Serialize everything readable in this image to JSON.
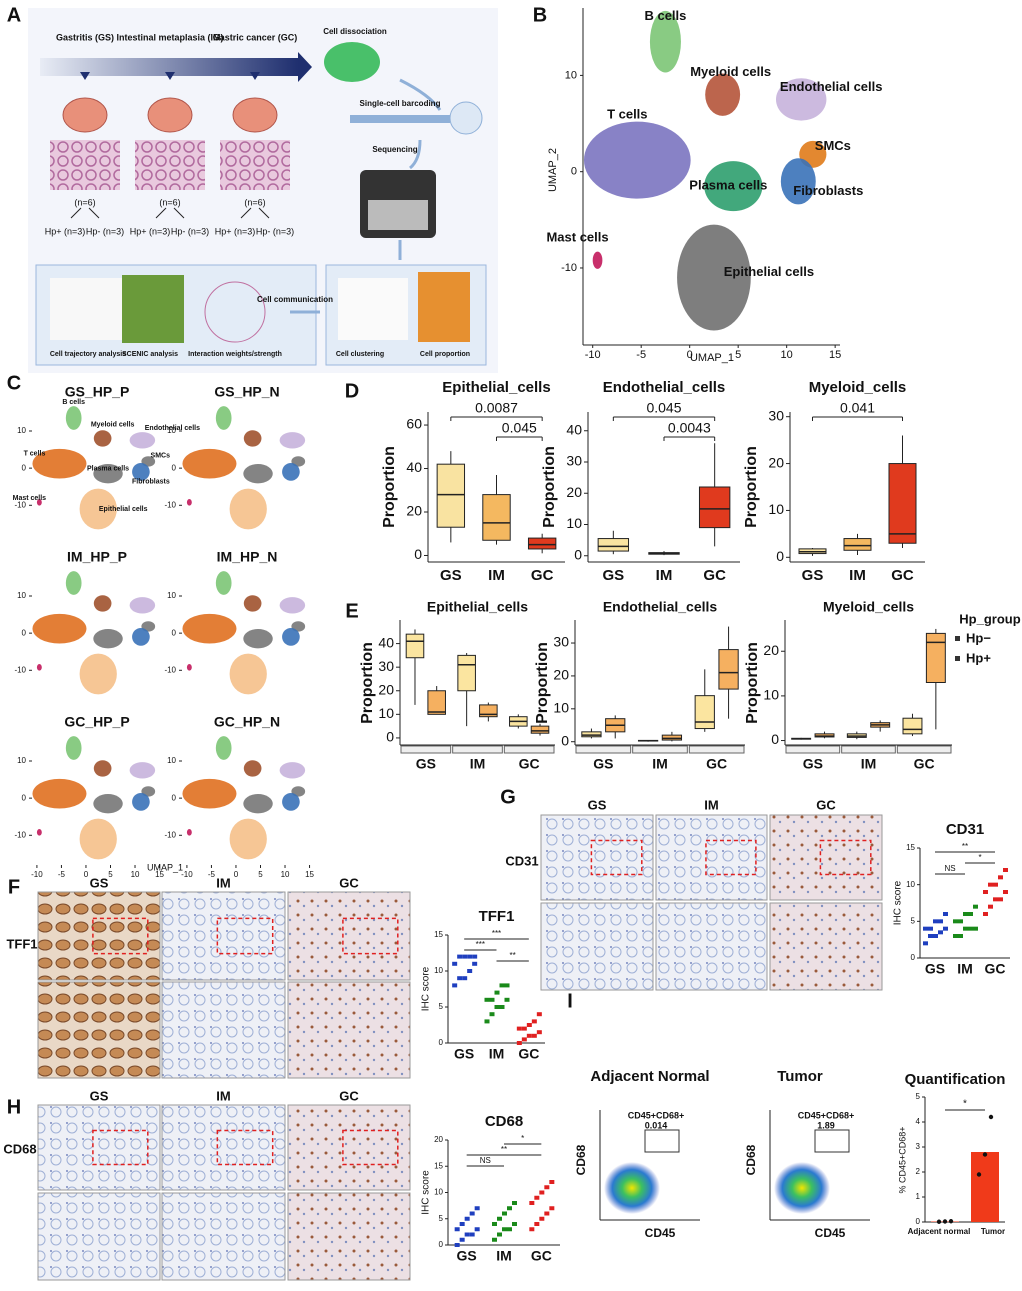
{
  "letters": [
    "A",
    "B",
    "C",
    "D",
    "E",
    "F",
    "G",
    "H",
    "I"
  ],
  "A": {
    "stages": [
      {
        "name": "Gastritis (GS)",
        "n": "(n=6)",
        "pos": "Hp+ (n=3)",
        "neg": "Hp- (n=3)"
      },
      {
        "name": "Intestinal metaplasia (IM)",
        "n": "(n=6)",
        "pos": "Hp+ (n=3)",
        "neg": "Hp- (n=3)"
      },
      {
        "name": "Gastric cancer (GC)",
        "n": "(n=6)",
        "pos": "Hp+ (n=3)",
        "neg": "Hp- (n=3)"
      }
    ],
    "steps": [
      "Cell dissociation",
      "Single-cell barcoding",
      "Sequencing",
      "Cell communication"
    ],
    "analyses": [
      "Cell trajectory analysis",
      "SCENIC analysis",
      "Interaction weights/strength",
      "Cell clustering",
      "Cell proportion"
    ]
  },
  "B": {
    "xlabel": "UMAP_1",
    "ylabel": "UMAP_2",
    "xlim": [
      -11,
      15.5
    ],
    "ylim": [
      -18,
      17
    ],
    "xticks": [
      -10,
      -5,
      0,
      5,
      10,
      15
    ],
    "yticks": [
      -10,
      0,
      10
    ],
    "clusters": [
      {
        "name": "B cells",
        "color": "#7cc576",
        "x": -2.5,
        "y": 13.5
      },
      {
        "name": "Myeloid cells",
        "color": "#b5543a",
        "x": 3.4,
        "y": 8
      },
      {
        "name": "Endothelial cells",
        "color": "#c7b3dc",
        "x": 11.5,
        "y": 7.5
      },
      {
        "name": "T cells",
        "color": "#7b74c0",
        "x": -5.4,
        "y": 1.2
      },
      {
        "name": "SMCs",
        "color": "#e07b1a",
        "x": 12.7,
        "y": 1.8
      },
      {
        "name": "Fibroblasts",
        "color": "#3a72b8",
        "x": 11.2,
        "y": -1
      },
      {
        "name": "Plasma cells",
        "color": "#2e9e6e",
        "x": 4.5,
        "y": -1.5
      },
      {
        "name": "Mast cells",
        "color": "#c2185b",
        "x": -9.5,
        "y": -9.2
      },
      {
        "name": "Epithelial cells",
        "color": "#707070",
        "x": 2.5,
        "y": -11
      }
    ]
  },
  "C": {
    "panels": [
      "GS_HP_P",
      "GS_HP_N",
      "IM_HP_P",
      "IM_HP_N",
      "GC_HP_P",
      "GC_HP_N"
    ],
    "xlabel": "UMAP_1",
    "xlim": [
      -11,
      15.5
    ],
    "ylim": [
      -18,
      17
    ],
    "xticks": [
      -10,
      -5,
      0,
      5,
      10,
      15
    ],
    "yticks": [
      -10,
      0,
      10
    ],
    "colors": [
      "#7cc576",
      "#a0522d",
      "#c7b3dc",
      "#e07020",
      "#777777",
      "#3a72b8",
      "#777777",
      "#c2185b",
      "#f5c08a"
    ],
    "labels": [
      "B cells",
      "Myeloid cells",
      "Endothelial cells",
      "T cells",
      "SMCs",
      "Fibroblasts",
      "Plasma cells",
      "Mast cells",
      "Epithelial cells"
    ]
  },
  "D": {
    "ylabel": "Proportion",
    "categories": [
      "GS",
      "IM",
      "GC"
    ],
    "colors": [
      "#f9e3a1",
      "#f4b860",
      "#e03a1e"
    ],
    "panels": [
      {
        "title": "Epithelial_cells",
        "ylim": [
          -3,
          66
        ],
        "yticks": [
          0,
          20,
          40,
          60
        ],
        "boxes": [
          {
            "min": 6,
            "q1": 13,
            "median": 28,
            "q3": 42,
            "max": 48
          },
          {
            "min": 5,
            "q1": 7,
            "median": 15,
            "q3": 28,
            "max": 37
          },
          {
            "min": 1,
            "q1": 3,
            "median": 5,
            "q3": 8,
            "max": 10
          }
        ],
        "comparisons": [
          {
            "groups": [
              "GS",
              "GC"
            ],
            "label": "0.0087"
          },
          {
            "groups": [
              "IM",
              "GC"
            ],
            "label": "0.045"
          }
        ]
      },
      {
        "title": "Endothelial_cells",
        "ylim": [
          -2,
          46
        ],
        "yticks": [
          0,
          10,
          20,
          30,
          40
        ],
        "boxes": [
          {
            "min": 0.5,
            "q1": 1.5,
            "median": 3,
            "q3": 5.5,
            "max": 8
          },
          {
            "min": 0.2,
            "q1": 0.5,
            "median": 0.7,
            "q3": 1,
            "max": 1.5
          },
          {
            "min": 3,
            "q1": 9,
            "median": 15,
            "q3": 22,
            "max": 36
          }
        ],
        "comparisons": [
          {
            "groups": [
              "GS",
              "GC"
            ],
            "label": "0.045"
          },
          {
            "groups": [
              "IM",
              "GC"
            ],
            "label": "0.0043"
          }
        ]
      },
      {
        "title": "Myeloid_cells",
        "ylim": [
          -1,
          31
        ],
        "yticks": [
          0,
          10,
          20,
          30
        ],
        "boxes": [
          {
            "min": 0.3,
            "q1": 0.8,
            "median": 1.2,
            "q3": 1.8,
            "max": 2
          },
          {
            "min": 0.5,
            "q1": 1.5,
            "median": 2.5,
            "q3": 4,
            "max": 5
          },
          {
            "min": 2,
            "q1": 3,
            "median": 5,
            "q3": 20,
            "max": 26
          }
        ],
        "comparisons": [
          {
            "groups": [
              "GS",
              "GC"
            ],
            "label": "0.041"
          }
        ]
      }
    ]
  },
  "E": {
    "ylabel": "Proportion",
    "categories": [
      "GS",
      "IM",
      "GC"
    ],
    "legend_title": "Hp_group",
    "series": [
      {
        "name": "Hp−",
        "color": "#fbe5a0"
      },
      {
        "name": "Hp+",
        "color": "#f5b060"
      }
    ],
    "panels": [
      {
        "title": "Epithelial_cells",
        "ylim": [
          -3,
          50
        ],
        "yticks": [
          0,
          10,
          20,
          30,
          40
        ],
        "boxes": [
          [
            {
              "min": 14,
              "q1": 34,
              "median": 41,
              "q3": 44,
              "max": 46
            },
            {
              "min": 5,
              "q1": 20,
              "median": 31,
              "q3": 35,
              "max": 36
            },
            {
              "min": 4,
              "q1": 5,
              "median": 7,
              "q3": 9,
              "max": 10
            }
          ],
          [
            {
              "min": 10,
              "q1": 10,
              "median": 11,
              "q3": 20,
              "max": 22
            },
            {
              "min": 7,
              "q1": 9,
              "median": 10,
              "q3": 14,
              "max": 15
            },
            {
              "min": 1,
              "q1": 2,
              "median": 3,
              "q3": 5,
              "max": 6
            }
          ]
        ]
      },
      {
        "title": "Endothelial_cells",
        "ylim": [
          -1,
          37
        ],
        "yticks": [
          0,
          10,
          20,
          30
        ],
        "boxes": [
          [
            {
              "min": 1,
              "q1": 1.5,
              "median": 2,
              "q3": 3,
              "max": 4
            },
            {
              "min": 0,
              "q1": 0.2,
              "median": 0.3,
              "q3": 0.4,
              "max": 0.5
            },
            {
              "min": 3,
              "q1": 4,
              "median": 6,
              "q3": 14,
              "max": 22
            }
          ],
          [
            {
              "min": 1,
              "q1": 3,
              "median": 5,
              "q3": 7,
              "max": 8
            },
            {
              "min": 0.1,
              "q1": 0.5,
              "median": 1,
              "q3": 2,
              "max": 3
            },
            {
              "min": 7,
              "q1": 16,
              "median": 21,
              "q3": 28,
              "max": 35
            }
          ]
        ]
      },
      {
        "title": "Myeloid_cells",
        "ylim": [
          -1,
          27
        ],
        "yticks": [
          0,
          10,
          20
        ],
        "boxes": [
          [
            {
              "min": 0.2,
              "q1": 0.3,
              "median": 0.4,
              "q3": 0.5,
              "max": 0.6
            },
            {
              "min": 0.3,
              "q1": 0.7,
              "median": 1,
              "q3": 1.5,
              "max": 2
            },
            {
              "min": 1,
              "q1": 1.5,
              "median": 2.5,
              "q3": 5,
              "max": 6
            }
          ],
          [
            {
              "min": 0.5,
              "q1": 0.8,
              "median": 1,
              "q3": 1.5,
              "max": 2
            },
            {
              "min": 2,
              "q1": 3,
              "median": 3.5,
              "q3": 4,
              "max": 4.5
            },
            {
              "min": 2.5,
              "q1": 13,
              "median": 22,
              "q3": 24,
              "max": 25
            }
          ]
        ]
      }
    ]
  },
  "F": {
    "columns": [
      "GS",
      "IM",
      "GC"
    ],
    "row_label": "TFF1",
    "plot": {
      "title": "TFF1",
      "ylabel": "IHC score",
      "ylim": [
        0,
        15
      ],
      "yticks": [
        0,
        5,
        10,
        15
      ],
      "categories": [
        "GS",
        "IM",
        "GC"
      ],
      "colors": [
        "#1f3fbf",
        "#1a8a1a",
        "#e02020"
      ],
      "values": [
        [
          8,
          9,
          9,
          10,
          11,
          11,
          12,
          12,
          12,
          12
        ],
        [
          3,
          4,
          5,
          5,
          6,
          6,
          6,
          7,
          8,
          8
        ],
        [
          0,
          0.5,
          1,
          1,
          1.5,
          2,
          2,
          2.5,
          3,
          4
        ]
      ],
      "comparisons": [
        {
          "groups": [
            "GS",
            "GC"
          ],
          "label": "***"
        },
        {
          "groups": [
            "GS",
            "IM"
          ],
          "label": "***"
        },
        {
          "groups": [
            "IM",
            "GC"
          ],
          "label": "**"
        }
      ]
    }
  },
  "G": {
    "columns": [
      "GS",
      "IM",
      "GC"
    ],
    "row_label": "CD31",
    "plot": {
      "title": "CD31",
      "ylabel": "IHC score",
      "ylim": [
        0,
        15
      ],
      "yticks": [
        0,
        5,
        10,
        15
      ],
      "categories": [
        "GS",
        "IM",
        "GC"
      ],
      "colors": [
        "#1f3fbf",
        "#1a8a1a",
        "#e02020"
      ],
      "values": [
        [
          2,
          3,
          3,
          3.5,
          4,
          4,
          4,
          5,
          5,
          6
        ],
        [
          3,
          3,
          4,
          4,
          4,
          5,
          5,
          6,
          6,
          7
        ],
        [
          6,
          7,
          8,
          8,
          9,
          9,
          10,
          10,
          11,
          12
        ]
      ],
      "comparisons": [
        {
          "groups": [
            "GS",
            "GC"
          ],
          "label": "**"
        },
        {
          "groups": [
            "IM",
            "GC"
          ],
          "label": "*"
        },
        {
          "groups": [
            "GS",
            "IM"
          ],
          "label": "NS"
        }
      ]
    }
  },
  "H": {
    "columns": [
      "GS",
      "IM",
      "GC"
    ],
    "row_label": "CD68",
    "plot": {
      "title": "CD68",
      "ylabel": "IHC score",
      "ylim": [
        0,
        20
      ],
      "yticks": [
        0,
        5,
        10,
        15,
        20
      ],
      "categories": [
        "GS",
        "IM",
        "GC"
      ],
      "colors": [
        "#1f3fbf",
        "#1a8a1a",
        "#e02020"
      ],
      "values": [
        [
          0,
          1,
          2,
          2,
          3,
          3,
          4,
          5,
          6,
          7
        ],
        [
          1,
          2,
          3,
          3,
          4,
          4,
          5,
          6,
          7,
          8
        ],
        [
          3,
          4,
          5,
          6,
          7,
          8,
          9,
          10,
          11,
          12
        ]
      ],
      "comparisons": [
        {
          "groups": [
            "IM",
            "GC"
          ],
          "label": "*"
        },
        {
          "groups": [
            "GS",
            "GC"
          ],
          "label": "**"
        },
        {
          "groups": [
            "GS",
            "IM"
          ],
          "label": "NS"
        }
      ]
    }
  },
  "I": {
    "flows": [
      {
        "title": "Adjacent Normal",
        "gate": "CD45+CD68+",
        "value": "0.014"
      },
      {
        "title": "Tumor",
        "gate": "CD45+CD68+",
        "value": "1.89"
      }
    ],
    "xlabel": "CD45",
    "ylabel": "CD68",
    "quant": {
      "title": "Quantification",
      "ylabel": "% CD45+CD68+",
      "ylim": [
        0,
        5
      ],
      "yticks": [
        0,
        1,
        2,
        3,
        4,
        5
      ],
      "categories": [
        "Adjacent normal",
        "Tumor"
      ],
      "values": [
        0.02,
        2.8
      ],
      "points": [
        [
          0.01,
          0.02,
          0.03
        ],
        [
          1.9,
          2.7,
          4.2
        ]
      ],
      "color": "#f03a1a",
      "significance": "*"
    }
  }
}
